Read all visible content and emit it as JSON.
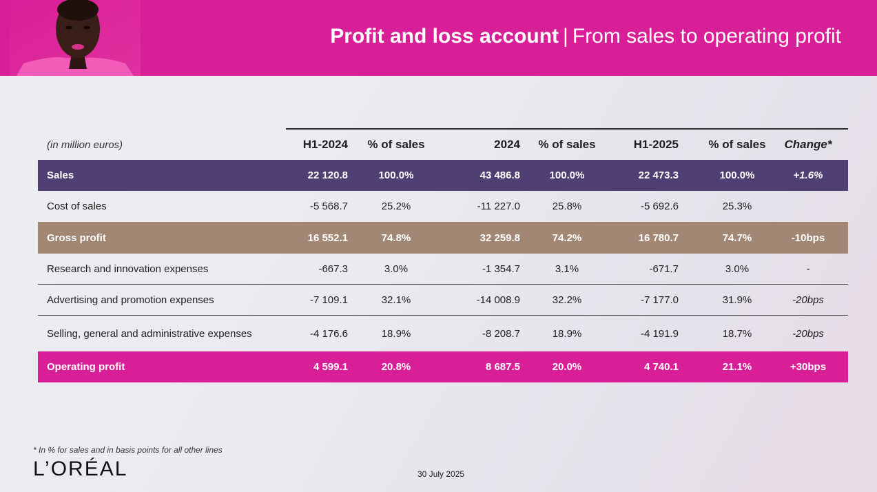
{
  "header": {
    "title_bold": "Profit and loss account",
    "separator": "|",
    "title_light": "From sales to operating profit"
  },
  "colors": {
    "brand_pink": "#d91f97",
    "sales_row": "#4f3f72",
    "gross_row": "#a28774"
  },
  "table": {
    "unit_label": "(in million euros)",
    "columns": [
      "H1-2024",
      "% of sales",
      "2024",
      "% of sales",
      "H1-2025",
      "% of sales",
      "Change*"
    ],
    "rows": [
      {
        "label": "Sales",
        "v": [
          "22 120.8",
          "100.0%",
          "43 486.8",
          "100.0%",
          "22 473.3",
          "100.0%",
          "+1.6%"
        ]
      },
      {
        "label": "Cost of sales",
        "v": [
          "-5 568.7",
          "25.2%",
          "-11 227.0",
          "25.8%",
          "-5 692.6",
          "25.3%",
          ""
        ]
      },
      {
        "label": "Gross profit",
        "v": [
          "16 552.1",
          "74.8%",
          "32 259.8",
          "74.2%",
          "16 780.7",
          "74.7%",
          "-10bps"
        ]
      },
      {
        "label": "Research and innovation expenses",
        "v": [
          "-667.3",
          "3.0%",
          "-1 354.7",
          "3.1%",
          "-671.7",
          "3.0%",
          "-"
        ]
      },
      {
        "label": "Advertising and promotion expenses",
        "v": [
          "-7 109.1",
          "32.1%",
          "-14 008.9",
          "32.2%",
          "-7 177.0",
          "31.9%",
          "-20bps"
        ]
      },
      {
        "label": "Selling, general and administrative expenses",
        "v": [
          "-4 176.6",
          "18.9%",
          "-8 208.7",
          "18.9%",
          "-4 191.9",
          "18.7%",
          "-20bps"
        ]
      },
      {
        "label": "Operating profit",
        "v": [
          "4 599.1",
          "20.8%",
          "8 687.5",
          "20.0%",
          "4 740.1",
          "21.1%",
          "+30bps"
        ]
      }
    ]
  },
  "footer": {
    "footnote": "* In % for sales and in basis points for all other lines",
    "logo": "L’ORÉAL",
    "date": "30 July 2025"
  }
}
